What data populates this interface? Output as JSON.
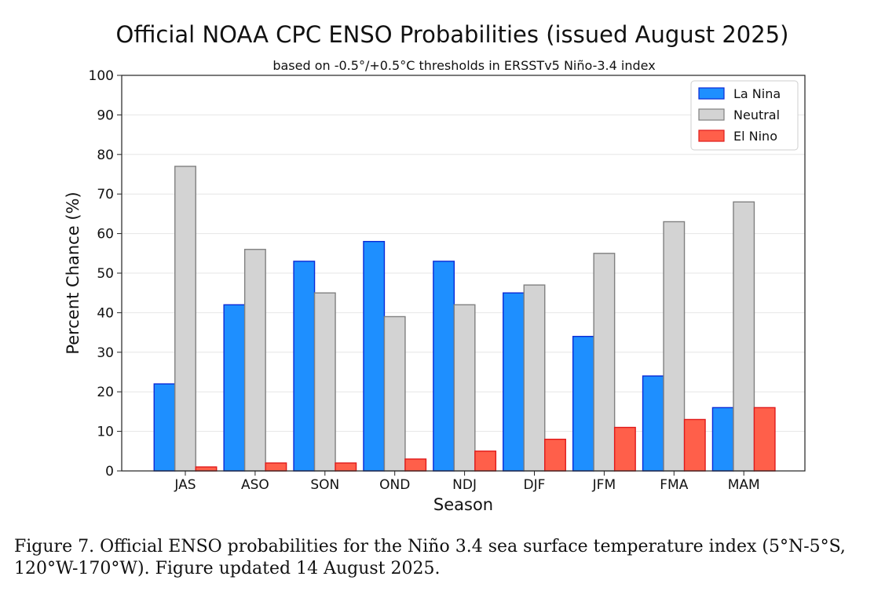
{
  "chart_data": {
    "type": "bar",
    "title": "Official NOAA CPC ENSO Probabilities (issued August 2025)",
    "subtitle": "based on -0.5°/+0.5°C thresholds in ERSSTv5 Niño-3.4 index",
    "xlabel": "Season",
    "ylabel": "Percent Chance (%)",
    "ylim": [
      0,
      100
    ],
    "yticks": [
      0,
      10,
      20,
      30,
      40,
      50,
      60,
      70,
      80,
      90,
      100
    ],
    "grid": true,
    "legend_position": "top-right",
    "categories": [
      "JAS",
      "ASO",
      "SON",
      "OND",
      "NDJ",
      "DJF",
      "JFM",
      "FMA",
      "MAM"
    ],
    "series": [
      {
        "name": "La Nina",
        "color": "#1e8fff",
        "edge": "#0a2ad6",
        "values": [
          22,
          42,
          53,
          58,
          53,
          45,
          34,
          24,
          16
        ]
      },
      {
        "name": "Neutral",
        "color": "#d3d3d3",
        "edge": "#808080",
        "values": [
          77,
          56,
          45,
          39,
          42,
          47,
          55,
          63,
          68
        ]
      },
      {
        "name": "El Nino",
        "color": "#ff5f4a",
        "edge": "#e01a1a",
        "values": [
          1,
          2,
          2,
          3,
          5,
          8,
          11,
          13,
          16
        ]
      }
    ]
  },
  "caption": "Figure 7. Official ENSO probabilities for the Niño 3.4 sea surface temperature index (5°N-5°S, 120°W-170°W). Figure updated 14 August 2025."
}
